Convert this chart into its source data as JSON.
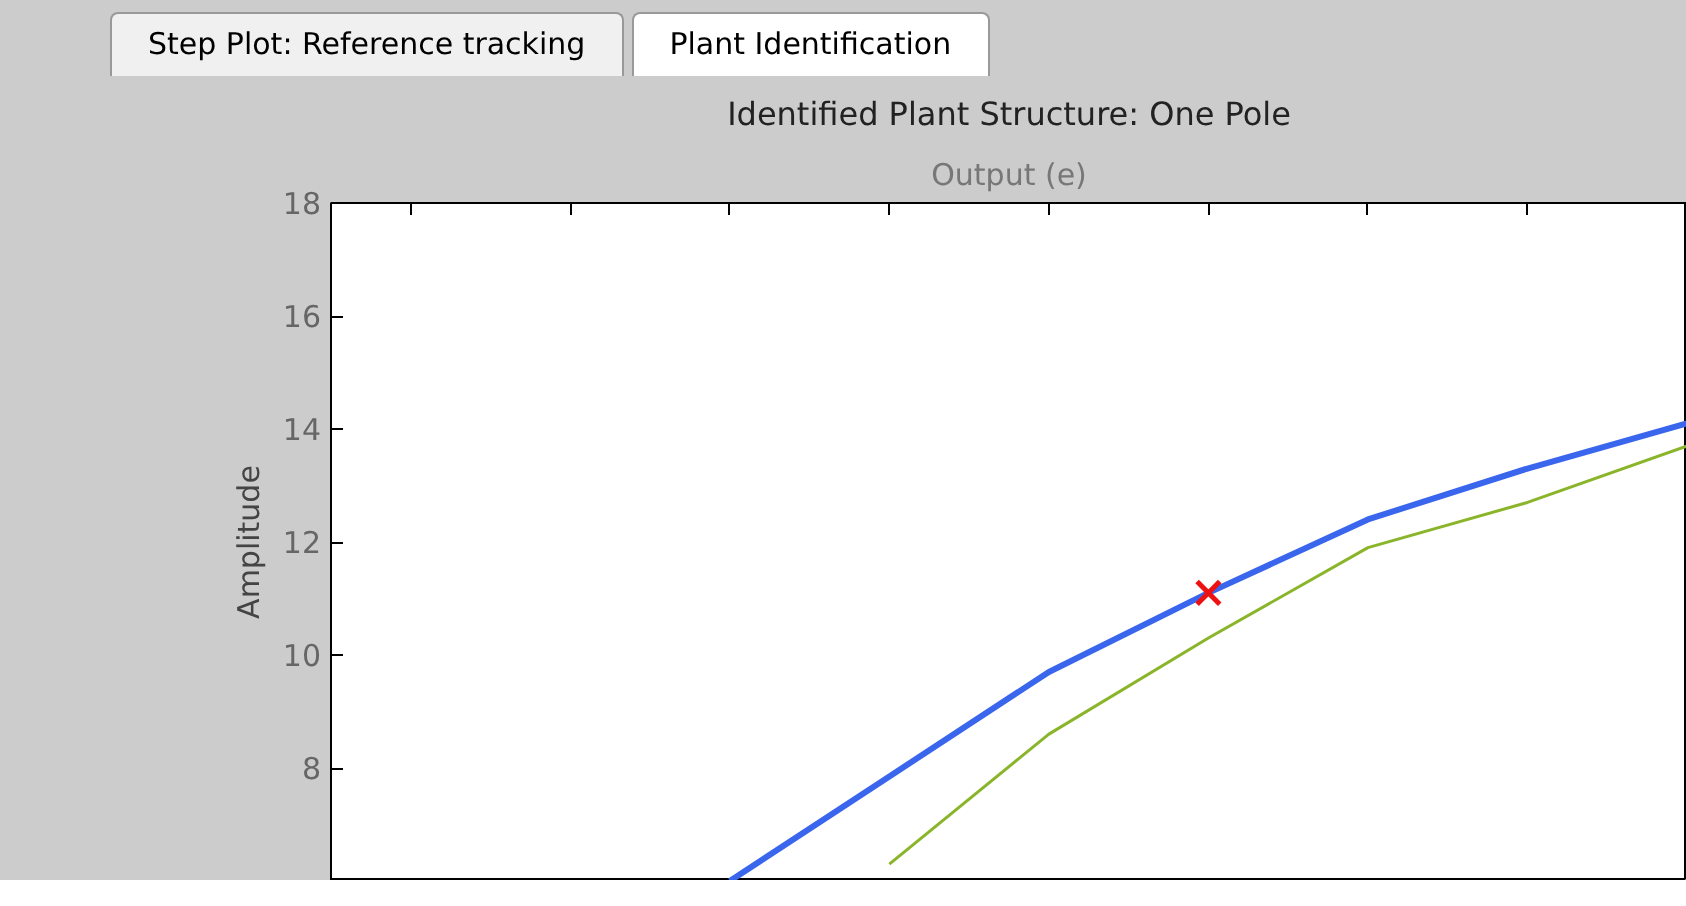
{
  "chart_data": {
    "type": "line",
    "title": "Identified Plant Structure: One Pole",
    "subtitle": "Output (e)",
    "ylabel": "Amplitude",
    "annotations": [
      "Step Plot: Reference tracking",
      "Plant Identification"
    ],
    "categories": [
      null,
      null,
      null,
      null,
      null,
      null,
      null,
      null,
      null
    ],
    "ylim": [
      6,
      18
    ],
    "yticks": [
      8,
      10,
      12,
      14,
      16,
      18
    ],
    "grid": false,
    "series": [
      {
        "color": "#3a66ee",
        "values": [
          null,
          null,
          6.0,
          7.85,
          9.7,
          11.1,
          12.4,
          13.3,
          14.1
        ]
      },
      {
        "color": "#8ab52a",
        "values": [
          null,
          null,
          null,
          6.3,
          8.6,
          10.3,
          11.9,
          12.7,
          13.7
        ]
      },
      {
        "type": "scatter",
        "marker": "cross",
        "color": "#ee1111",
        "values": [
          null,
          null,
          null,
          null,
          null,
          11.1,
          null,
          null,
          null
        ]
      }
    ]
  }
}
